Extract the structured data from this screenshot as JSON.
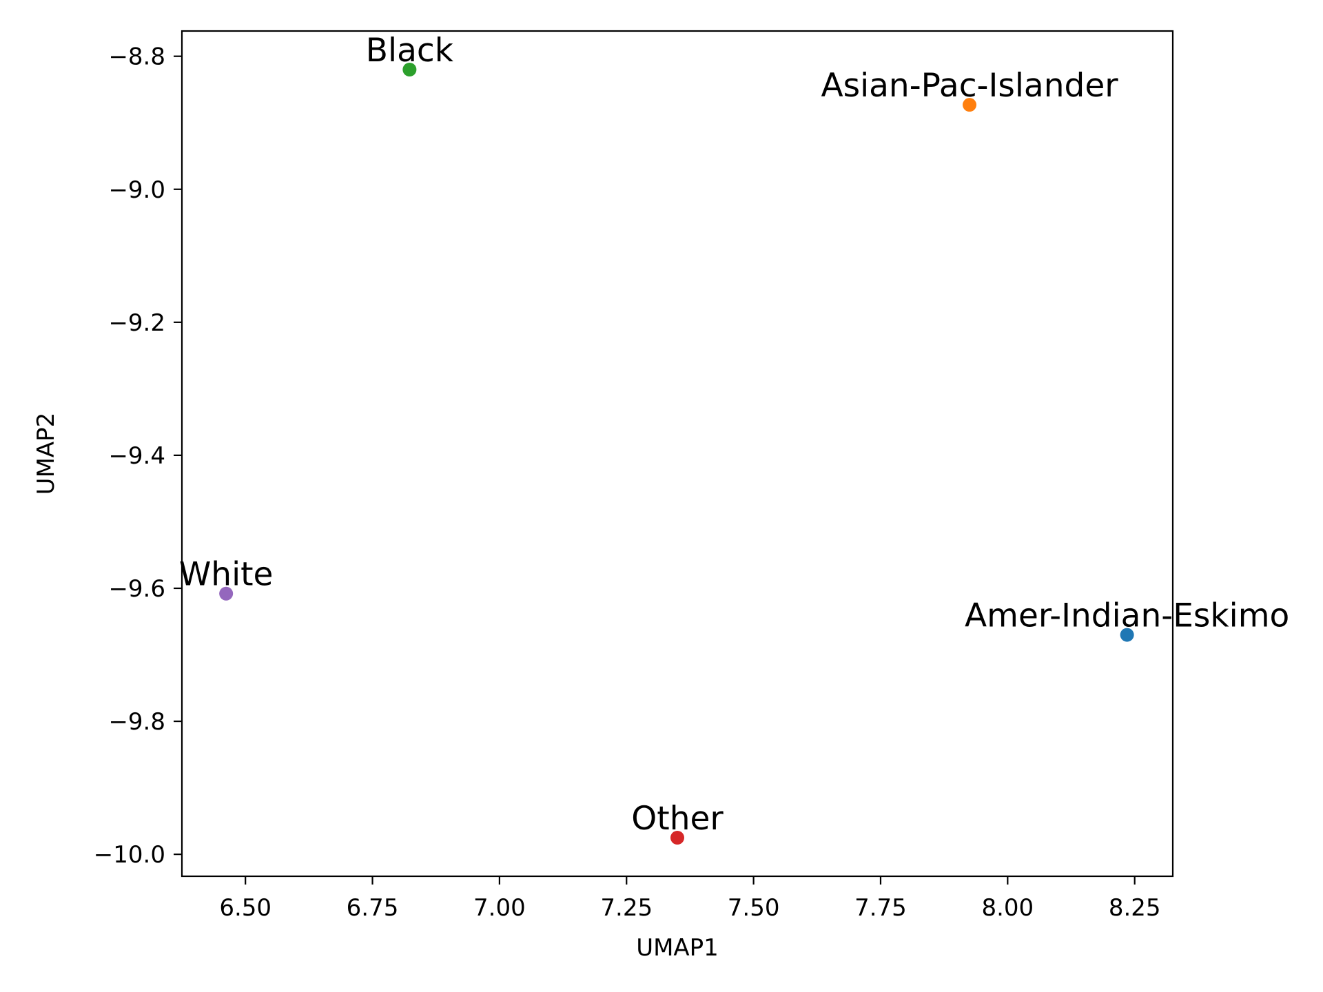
{
  "chart_data": {
    "type": "scatter",
    "title": "",
    "xlabel": "UMAP1",
    "ylabel": "UMAP2",
    "xlim": [
      6.375,
      8.325
    ],
    "ylim": [
      -10.033,
      -8.762
    ],
    "x_ticks": [
      6.5,
      6.75,
      7.0,
      7.25,
      7.5,
      7.75,
      8.0,
      8.25
    ],
    "x_tick_labels": [
      "6.50",
      "6.75",
      "7.00",
      "7.25",
      "7.50",
      "7.75",
      "8.00",
      "8.25"
    ],
    "y_ticks": [
      -8.8,
      -9.0,
      -9.2,
      -9.4,
      -9.6,
      -9.8,
      -10.0
    ],
    "y_tick_labels": [
      "−8.8",
      "−9.0",
      "−9.2",
      "−9.4",
      "−9.6",
      "−9.8",
      "−10.0"
    ],
    "grid": false,
    "points": [
      {
        "label": "Amer-Indian-Eskimo",
        "x": 8.235,
        "y": -9.67,
        "color": "#1f77b4"
      },
      {
        "label": "Asian-Pac-Islander",
        "x": 7.925,
        "y": -8.873,
        "color": "#ff7f0e"
      },
      {
        "label": "Black",
        "x": 6.823,
        "y": -8.82,
        "color": "#2ca02c"
      },
      {
        "label": "Other",
        "x": 7.35,
        "y": -9.975,
        "color": "#d62728"
      },
      {
        "label": "White",
        "x": 6.462,
        "y": -9.608,
        "color": "#9467bd"
      }
    ]
  }
}
